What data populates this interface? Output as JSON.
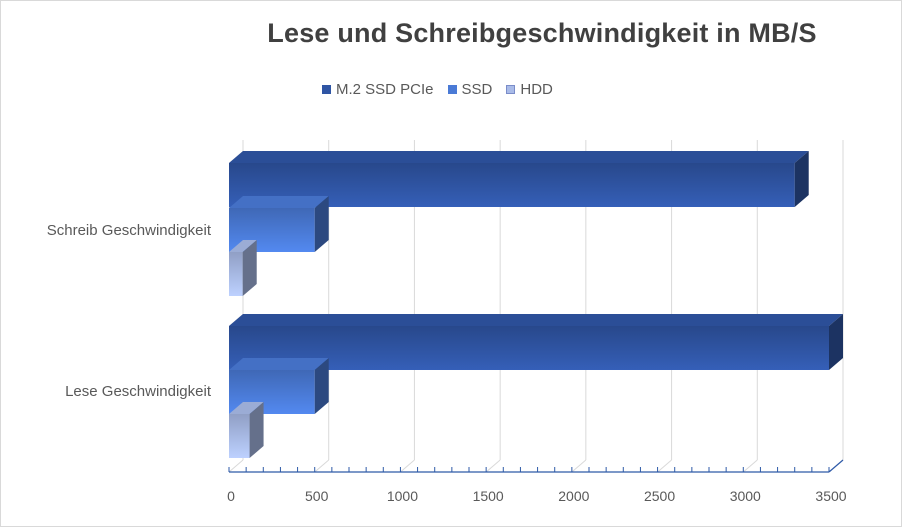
{
  "chart_data": {
    "type": "bar",
    "orientation": "horizontal",
    "style": "3d-clustered",
    "title": "Lese und Schreibgeschwindigkeit in MB/S",
    "categories": [
      "Schreib Geschwindigkeit",
      "Lese Geschwindigkeit"
    ],
    "series": [
      {
        "name": "M.2 SSD PCIe",
        "values": [
          3300,
          3500
        ],
        "color": "#2f55a4"
      },
      {
        "name": "SSD",
        "values": [
          500,
          500
        ],
        "color": "#4a7ad6"
      },
      {
        "name": "HDD",
        "values": [
          80,
          120
        ],
        "color": "#a9bbe8"
      }
    ],
    "xlim": [
      0,
      3500
    ],
    "x_ticks": [
      "0",
      "500",
      "1000",
      "1500",
      "2000",
      "2500",
      "3000",
      "3500"
    ],
    "grid": true,
    "legend_position": "top"
  }
}
